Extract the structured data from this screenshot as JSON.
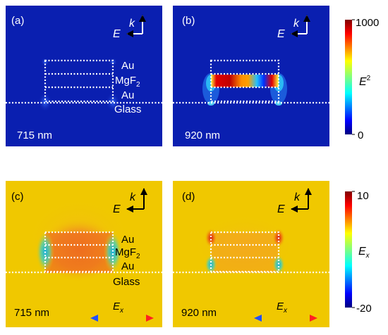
{
  "panels": [
    {
      "id": "a",
      "tag": "(a)",
      "wavelength": "715 nm",
      "field": "E",
      "k": "k",
      "layers": {
        "top": "Au",
        "mid_base": "MgF",
        "mid_sub": "2",
        "bottom": "Au",
        "substrate": "Glass"
      }
    },
    {
      "id": "b",
      "tag": "(b)",
      "wavelength": "920 nm",
      "field": "E",
      "k": "k"
    },
    {
      "id": "c",
      "tag": "(c)",
      "wavelength": "715 nm",
      "field": "E",
      "k": "k",
      "ex_base": "E",
      "ex_sub": "x",
      "layers": {
        "top": "Au",
        "mid_base": "MgF",
        "mid_sub": "2",
        "bottom": "Au",
        "substrate": "Glass"
      }
    },
    {
      "id": "d",
      "tag": "(d)",
      "wavelength": "920 nm",
      "field": "E",
      "k": "k",
      "ex_base": "E",
      "ex_sub": "x"
    }
  ],
  "colorbars": [
    {
      "max": "1000",
      "min": "0",
      "label_base": "E",
      "label_sup": "2"
    },
    {
      "max": "10",
      "min": "-20",
      "label_base": "E",
      "label_sub": "x"
    }
  ],
  "colors": {
    "bg_intensity": "#0a1fb0",
    "bg_field": "#f0c800",
    "hot": "#c80000",
    "cold": "#1ab4d8"
  }
}
